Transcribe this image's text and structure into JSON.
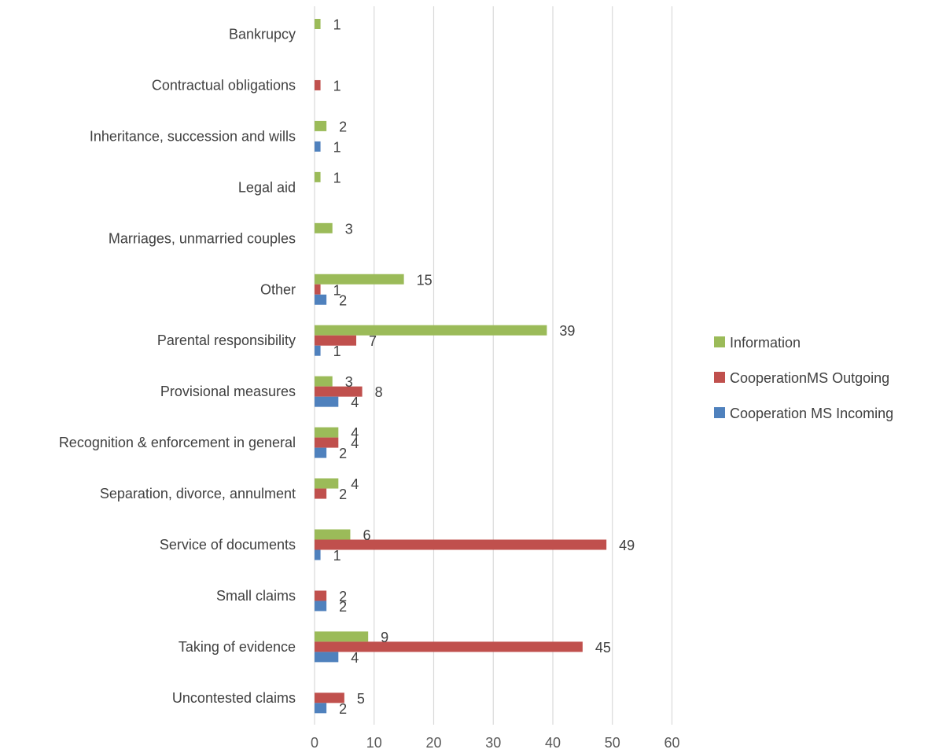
{
  "chart_data": {
    "type": "bar",
    "orientation": "horizontal",
    "categories": [
      "Bankrupcy",
      "Contractual obligations",
      "Inheritance, succession and wills",
      "Legal aid",
      "Marriages, unmarried couples",
      "Other",
      "Parental responsibility",
      "Provisional measures",
      "Recognition & enforcement in general",
      "Separation, divorce, annulment",
      "Service of documents",
      "Small claims",
      "Taking of evidence",
      "Uncontested claims"
    ],
    "series": [
      {
        "name": "Information",
        "color": "#9BBB59",
        "values": [
          1,
          null,
          2,
          1,
          3,
          15,
          39,
          3,
          4,
          4,
          6,
          null,
          9,
          null
        ]
      },
      {
        "name": "CooperationMS Outgoing",
        "color": "#C0504D",
        "values": [
          null,
          1,
          null,
          null,
          null,
          1,
          7,
          8,
          4,
          2,
          49,
          2,
          45,
          5
        ]
      },
      {
        "name": "Cooperation MS Incoming",
        "color": "#4F81BD",
        "values": [
          null,
          null,
          1,
          null,
          null,
          2,
          1,
          4,
          2,
          null,
          1,
          2,
          4,
          2
        ]
      }
    ],
    "xlim": [
      0,
      60
    ],
    "xticks": [
      0,
      10,
      20,
      30,
      40,
      50,
      60
    ],
    "grid": true,
    "legend_position": "right",
    "title": "",
    "xlabel": "",
    "ylabel": ""
  }
}
